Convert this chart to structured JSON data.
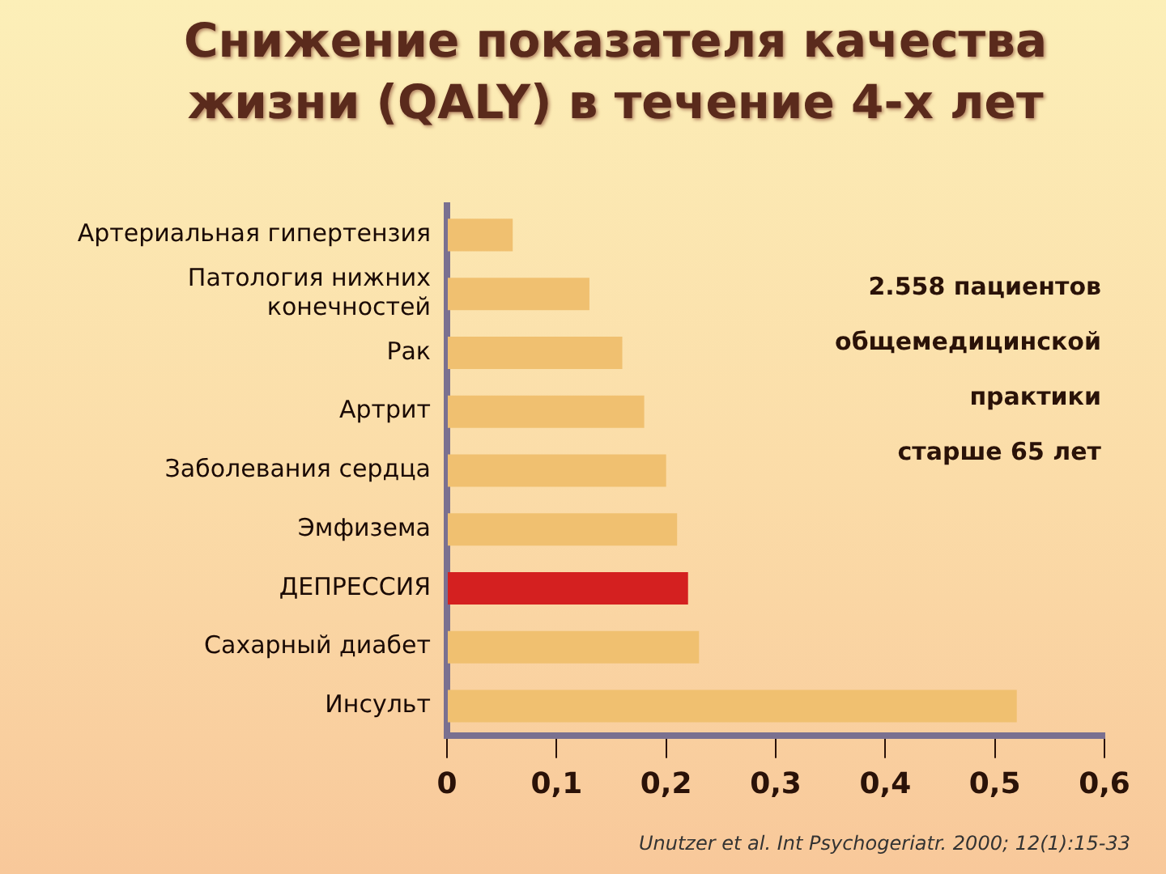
{
  "chart_data": {
    "type": "bar",
    "orientation": "horizontal",
    "title": "Снижение показателя качества жизни (QALY) в течение 4-х лет",
    "categories": [
      "Артериальная гипертензия",
      "Патология нижних конечностей",
      "Рак",
      "Артрит",
      "Заболевания сердца",
      "Эмфизема",
      "ДЕПРЕССИЯ",
      "Сахарный диабет",
      "Инсульт"
    ],
    "values": [
      0.06,
      0.13,
      0.16,
      0.18,
      0.2,
      0.21,
      0.22,
      0.23,
      0.52
    ],
    "colors": [
      "#f0c070",
      "#f0c070",
      "#f0c070",
      "#f0c070",
      "#f0c070",
      "#f0c070",
      "#d42020",
      "#f0c070",
      "#f0c070"
    ],
    "xlim": [
      0,
      0.6
    ],
    "xticks": [
      0,
      {
        "value": 0.1,
        "label": "0,1"
      },
      {
        "value": 0.2,
        "label": "0,2"
      },
      {
        "value": 0.3,
        "label": "0,3"
      },
      {
        "value": 0.4,
        "label": "0,4"
      },
      {
        "value": 0.5,
        "label": "0,5"
      },
      {
        "value": 0.6,
        "label": "0,6"
      }
    ],
    "grid": false,
    "legend": false,
    "annotations": [
      "2.558 пациентов",
      "общемедицинской",
      "практики",
      "старше 65 лет",
      "Unutzer et al. Int Psychogeriatr. 2000; 12(1):15-33"
    ]
  }
}
